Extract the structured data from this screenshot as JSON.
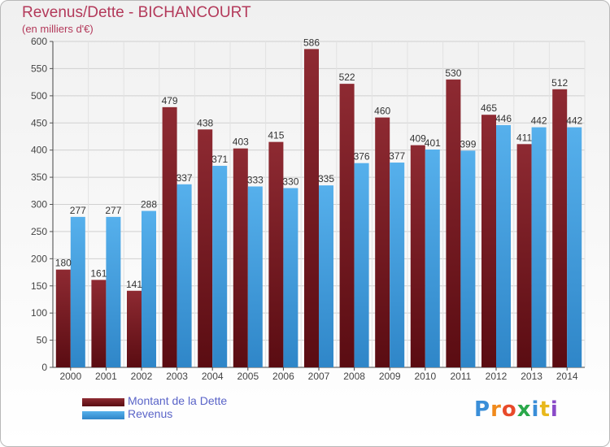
{
  "title": "Revenus/Dette - BICHANCOURT",
  "subtitle": "(en milliers d'€)",
  "colors": {
    "dette": "#8b1e28",
    "revenus": "#4aa8e6",
    "title": "#b3395a",
    "legend_text": "#5a64c8"
  },
  "legend": [
    {
      "label": "Montant de la Dette",
      "color": "#7a1820"
    },
    {
      "label": "Revenus",
      "color": "#4aa8e6"
    }
  ],
  "logo": {
    "text": "Proxiti",
    "letter_colors": [
      "#3a8ed8",
      "#f08a1c",
      "#e84a2a",
      "#2aa84a",
      "#3a8ed8",
      "#e8b81c",
      "#8a4ac8"
    ]
  },
  "chart_data": {
    "type": "bar",
    "categories": [
      "2000",
      "2001",
      "2002",
      "2003",
      "2004",
      "2005",
      "2006",
      "2007",
      "2008",
      "2009",
      "2010",
      "2011",
      "2012",
      "2013",
      "2014"
    ],
    "series": [
      {
        "name": "Montant de la Dette",
        "values": [
          180,
          161,
          141,
          479,
          438,
          403,
          415,
          586,
          522,
          460,
          409,
          530,
          465,
          411,
          512
        ]
      },
      {
        "name": "Revenus",
        "values": [
          277,
          277,
          288,
          337,
          371,
          333,
          330,
          335,
          376,
          377,
          401,
          399,
          446,
          442,
          442
        ]
      }
    ],
    "data_labels": {
      "Montant de la Dette": [
        "180",
        "161",
        "141",
        "479",
        "438",
        "403",
        "415",
        "586",
        "522",
        "460",
        "409",
        "530",
        "465",
        "411",
        "512"
      ],
      "Revenus": [
        "277",
        "277",
        "288",
        "337",
        "371",
        "333",
        "330",
        "335",
        "376",
        "377",
        "401",
        "399",
        "446",
        "442",
        "442"
      ]
    },
    "ylim": [
      0,
      600
    ],
    "yticks": [
      0,
      50,
      100,
      150,
      200,
      250,
      300,
      350,
      400,
      450,
      500,
      550,
      600
    ],
    "ytick_labels": [
      "0",
      "50",
      "100",
      "150",
      "200",
      "250",
      "300",
      "350",
      "400",
      "450",
      "500",
      "550",
      "600"
    ],
    "grid": true,
    "legend_position": "bottom-left"
  }
}
